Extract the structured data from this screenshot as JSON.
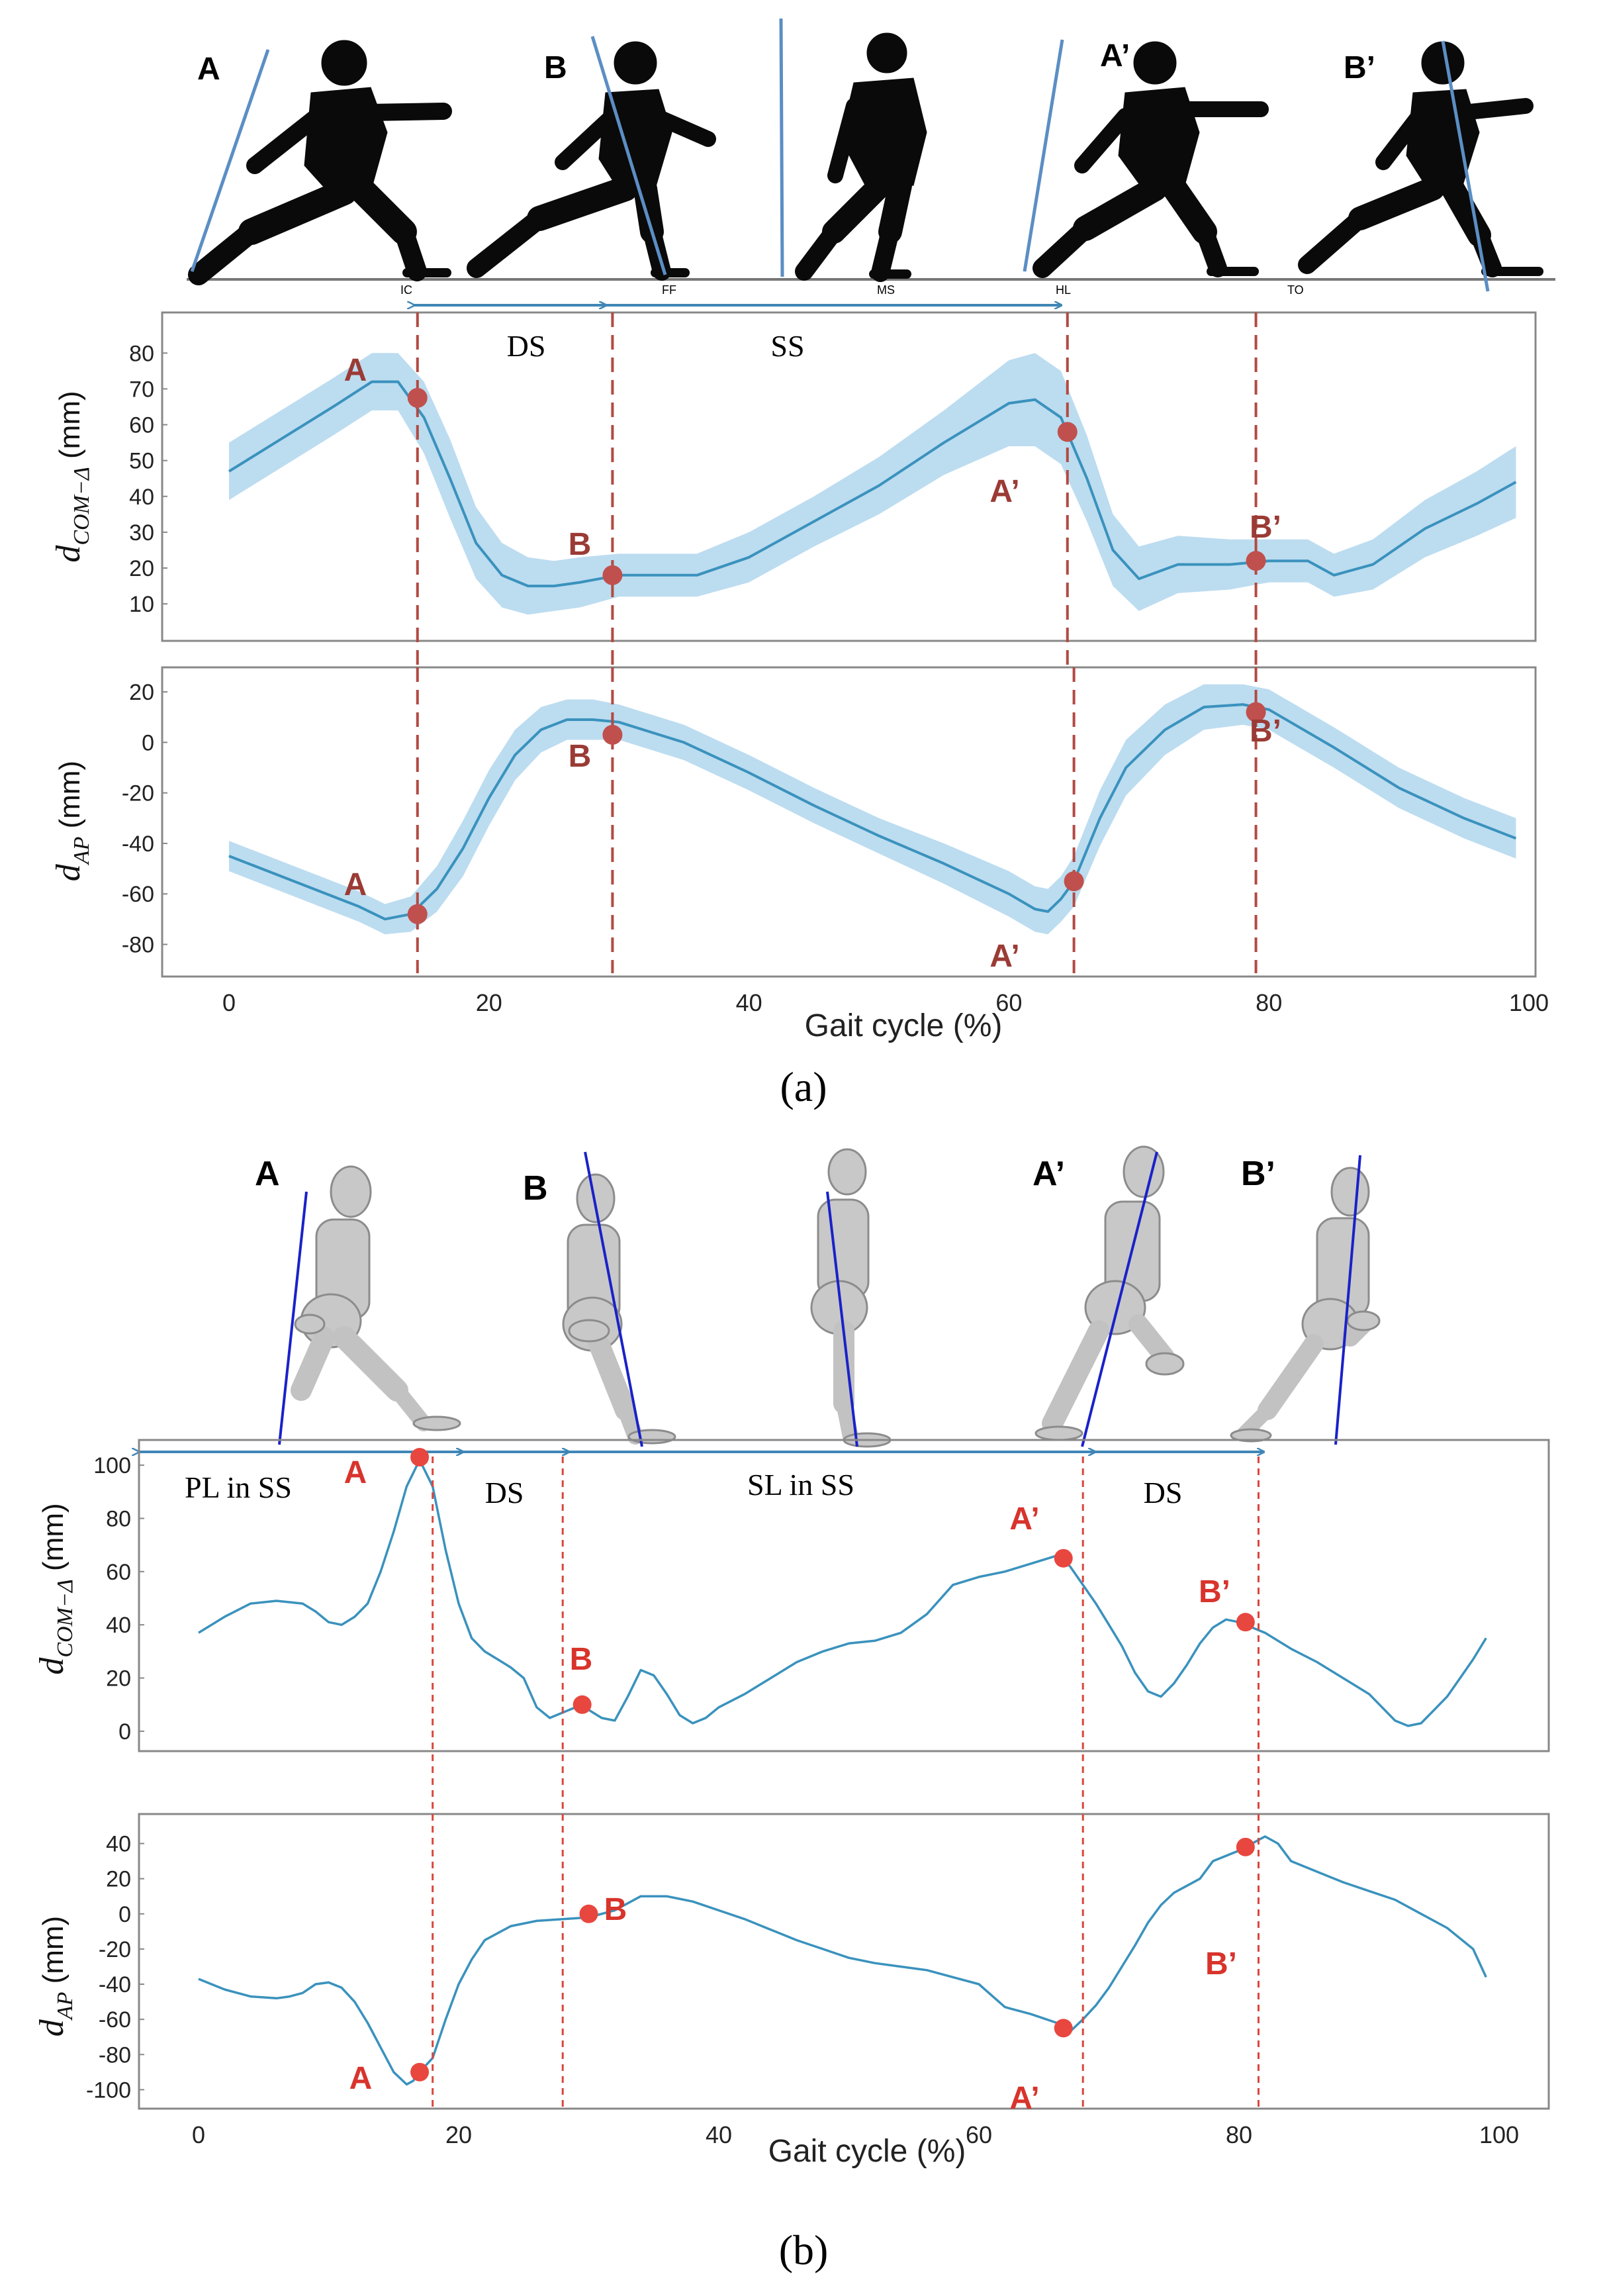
{
  "colors": {
    "line": "#3a92bd",
    "band": "#bcdcf0",
    "marker_a": "#c0504d",
    "marker_b": "#e8473f",
    "label_a": "#9b3b35",
    "label_b": "#d8342c",
    "arrow": "#3f86b6",
    "bodyline": "#5b8ec4",
    "frame": "#888888",
    "axis_text": "#222222"
  },
  "phases_a": {
    "IC": "IC",
    "FF": "FF",
    "MS": "MS",
    "HL": "HL",
    "TO": "TO"
  },
  "figure_a": {
    "caption": "(a)",
    "poses": [
      "A",
      "B",
      "A’",
      "B’"
    ],
    "phase_labels": {
      "ds": "DS",
      "ss": "SS"
    }
  },
  "figure_b": {
    "caption": "(b)",
    "poses": [
      "A",
      "B",
      "A’",
      "B’"
    ],
    "phase_labels": {
      "pl_ss": "PL in SS",
      "ds1": "DS",
      "sl_ss": "SL in SS",
      "ds2": "DS"
    }
  },
  "chart_data": [
    {
      "id": "a-com",
      "type": "line",
      "panel": "(a) top",
      "ylabel": "d_COM−Δ (mm)",
      "ylabel_main": "d",
      "ylabel_sub": "COM−Δ",
      "ylabel_unit": " (mm)",
      "ylim": [
        3,
        88
      ],
      "yticks": [
        10,
        20,
        30,
        40,
        50,
        60,
        70,
        80
      ],
      "x": [
        0,
        4,
        8,
        11,
        13,
        15,
        17,
        19,
        21,
        23,
        25,
        27,
        30,
        33,
        36,
        40,
        45,
        50,
        55,
        60,
        62,
        64,
        66,
        68,
        70,
        73,
        77,
        80,
        83,
        85,
        88,
        92,
        96,
        99
      ],
      "values": [
        47,
        56,
        65,
        72,
        72,
        62,
        45,
        27,
        18,
        15,
        15,
        16,
        18,
        18,
        18,
        23,
        33,
        43,
        55,
        66,
        67,
        62,
        45,
        25,
        17,
        21,
        21,
        22,
        22,
        18,
        21,
        31,
        38,
        44
      ],
      "band": [
        8,
        8,
        8,
        8,
        8,
        10,
        11,
        10,
        9,
        8,
        7,
        7,
        6,
        6,
        6,
        7,
        7,
        8,
        9,
        12,
        13,
        13,
        12,
        10,
        9,
        8,
        7,
        6,
        6,
        6,
        7,
        8,
        9,
        10
      ],
      "vlines": [
        14.5,
        29.5,
        64.5,
        79
      ],
      "points": [
        {
          "label": "A",
          "x": 14.5,
          "y": 67.5
        },
        {
          "label": "B",
          "x": 29.5,
          "y": 18
        },
        {
          "label": "A’",
          "x": 64.5,
          "y": 58
        },
        {
          "label": "B’",
          "x": 79,
          "y": 22
        }
      ]
    },
    {
      "id": "a-ap",
      "type": "line",
      "panel": "(a) bottom",
      "ylabel": "d_AP (mm)",
      "ylabel_main": "d",
      "ylabel_sub": "AP",
      "ylabel_unit": " (mm)",
      "xlabel": "Gait cycle (%)",
      "xlim": [
        -4,
        103
      ],
      "ylim": [
        -88,
        25
      ],
      "xticks": [
        0,
        20,
        40,
        60,
        80,
        100
      ],
      "yticks": [
        20,
        0,
        -20,
        -40,
        -60,
        -80
      ],
      "x": [
        0,
        5,
        10,
        12,
        14,
        16,
        18,
        20,
        22,
        24,
        26,
        28,
        30,
        35,
        40,
        45,
        50,
        55,
        60,
        62,
        63,
        64,
        65,
        67,
        69,
        72,
        75,
        78,
        80,
        82,
        85,
        90,
        95,
        99
      ],
      "values": [
        -45,
        -55,
        -65,
        -70,
        -68,
        -58,
        -42,
        -22,
        -5,
        5,
        9,
        9,
        8,
        0,
        -12,
        -25,
        -37,
        -48,
        -60,
        -66,
        -67,
        -62,
        -55,
        -30,
        -10,
        5,
        14,
        15,
        13,
        7,
        -2,
        -18,
        -30,
        -38
      ],
      "band": [
        6,
        6,
        6,
        6,
        7,
        9,
        11,
        11,
        10,
        9,
        8,
        8,
        7,
        7,
        7,
        7,
        7,
        8,
        9,
        9,
        9,
        9,
        10,
        11,
        11,
        10,
        9,
        8,
        8,
        8,
        8,
        8,
        8,
        8
      ],
      "vlines": [
        14.5,
        29.5,
        65,
        79
      ],
      "points": [
        {
          "label": "A",
          "x": 14.5,
          "y": -68
        },
        {
          "label": "B",
          "x": 29.5,
          "y": 3
        },
        {
          "label": "A’",
          "x": 65,
          "y": -55
        },
        {
          "label": "B’",
          "x": 79,
          "y": 12
        }
      ]
    },
    {
      "id": "b-com",
      "type": "line",
      "panel": "(b) top",
      "ylabel": "d_COM−Δ (mm)",
      "ylabel_main": "d",
      "ylabel_sub": "COM−Δ",
      "ylabel_unit": " (mm)",
      "ylim": [
        -3,
        105
      ],
      "yticks": [
        0,
        20,
        40,
        60,
        80,
        100
      ],
      "x": [
        0,
        2,
        4,
        6,
        8,
        9,
        10,
        11,
        12,
        13,
        14,
        15,
        16,
        17,
        18,
        19,
        20,
        21,
        22,
        23,
        24,
        25,
        26,
        27,
        28,
        29,
        30,
        31,
        32,
        33,
        34,
        35,
        36,
        37,
        38,
        39,
        40,
        42,
        44,
        46,
        48,
        50,
        52,
        54,
        56,
        58,
        60,
        62,
        64,
        66,
        67,
        68,
        69,
        70,
        71,
        72,
        73,
        74,
        75,
        76,
        77,
        78,
        79,
        80,
        81,
        82,
        84,
        86,
        88,
        90,
        91,
        92,
        93,
        94,
        95,
        96,
        97,
        98,
        99
      ],
      "values": [
        37,
        43,
        48,
        49,
        48,
        45,
        41,
        40,
        43,
        48,
        60,
        75,
        92,
        102,
        92,
        68,
        48,
        35,
        30,
        27,
        24,
        20,
        9,
        5,
        7,
        9,
        8,
        5,
        4,
        13,
        23,
        21,
        14,
        6,
        3,
        5,
        9,
        14,
        20,
        26,
        30,
        33,
        34,
        37,
        44,
        55,
        58,
        60,
        63,
        66,
        62,
        55,
        48,
        40,
        32,
        22,
        15,
        13,
        18,
        25,
        33,
        39,
        42,
        41,
        39,
        37,
        31,
        26,
        20,
        14,
        9,
        4,
        2,
        3,
        8,
        13,
        20,
        27,
        35
      ],
      "vlines": [
        18,
        28,
        68,
        81.5
      ],
      "points": [
        {
          "label": "A",
          "x": 17,
          "y": 103
        },
        {
          "label": "B",
          "x": 29.5,
          "y": 10
        },
        {
          "label": "A’",
          "x": 66.5,
          "y": 65
        },
        {
          "label": "B’",
          "x": 80.5,
          "y": 41
        }
      ]
    },
    {
      "id": "b-ap",
      "type": "line",
      "panel": "(b) bottom",
      "ylabel": "d_AP (mm)",
      "ylabel_main": "d",
      "ylabel_sub": "AP",
      "ylabel_unit": " (mm)",
      "xlabel": "Gait cycle (%)",
      "xlim": [
        -4,
        104
      ],
      "ylim": [
        -104,
        50
      ],
      "xticks": [
        0,
        20,
        40,
        60,
        80,
        100
      ],
      "yticks": [
        40,
        20,
        0,
        -20,
        -40,
        -60,
        -80,
        -100
      ],
      "x": [
        0,
        2,
        4,
        6,
        7,
        8,
        9,
        10,
        11,
        12,
        13,
        14,
        15,
        16,
        16.5,
        17,
        18,
        19,
        20,
        21,
        22,
        24,
        26,
        28,
        30,
        32,
        34,
        36,
        38,
        40,
        42,
        44,
        46,
        48,
        50,
        52,
        54,
        56,
        58,
        60,
        62,
        64,
        66,
        67,
        68,
        69,
        70,
        71,
        72,
        73,
        74,
        75,
        76,
        77,
        78,
        79,
        80,
        81,
        82,
        83,
        84,
        86,
        88,
        90,
        92,
        94,
        96,
        98,
        99
      ],
      "values": [
        -37,
        -43,
        -47,
        -48,
        -47,
        -45,
        -40,
        -39,
        -42,
        -50,
        -62,
        -76,
        -90,
        -97,
        -95,
        -90,
        -82,
        -60,
        -40,
        -26,
        -15,
        -7,
        -4,
        -3,
        -2,
        2,
        10,
        10,
        7,
        2,
        -3,
        -9,
        -15,
        -20,
        -25,
        -28,
        -30,
        -32,
        -36,
        -40,
        -53,
        -57,
        -62,
        -67,
        -60,
        -52,
        -42,
        -30,
        -18,
        -5,
        5,
        12,
        16,
        20,
        30,
        33,
        36,
        40,
        44,
        40,
        30,
        24,
        18,
        13,
        8,
        0,
        -8,
        -20,
        -36
      ],
      "vlines": [
        18,
        28,
        68,
        81.5
      ],
      "points": [
        {
          "label": "A",
          "x": 17,
          "y": -90
        },
        {
          "label": "B",
          "x": 30,
          "y": 0
        },
        {
          "label": "A’",
          "x": 66.5,
          "y": -65
        },
        {
          "label": "B’",
          "x": 80.5,
          "y": 38
        }
      ]
    }
  ]
}
